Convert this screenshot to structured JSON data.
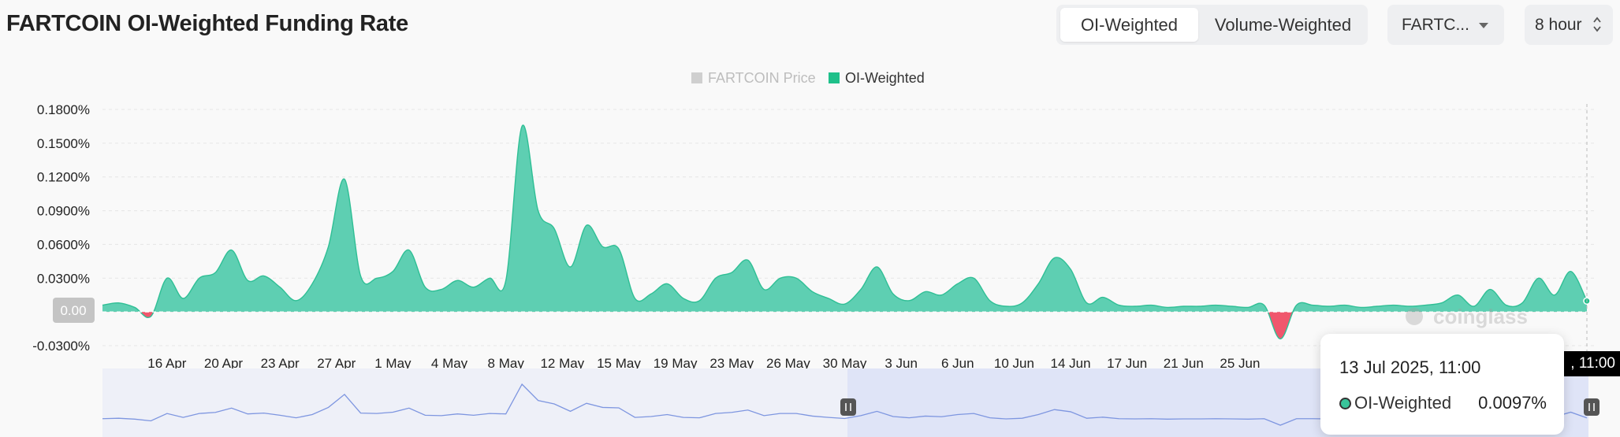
{
  "header": {
    "title": "FARTCOIN OI-Weighted Funding Rate",
    "tabs": [
      {
        "label": "OI-Weighted",
        "active": true
      },
      {
        "label": "Volume-Weighted",
        "active": false
      }
    ],
    "symbol_select": {
      "value": "FARTC..."
    },
    "interval_select": {
      "value": "8 hour"
    }
  },
  "legend": [
    {
      "label": "FARTCOIN Price",
      "color": "#c8c8c8",
      "enabled": false
    },
    {
      "label": "OI-Weighted",
      "color": "#1fc08a",
      "enabled": true
    }
  ],
  "tooltip": {
    "time": "13 Jul 2025, 11:00",
    "series": "OI-Weighted",
    "value": "0.0097%"
  },
  "crosshair_time_label": ", 11:00",
  "zero_badge": "0.00",
  "watermark": "coinglass",
  "colors": {
    "positive": "#5ecfb2",
    "positive_line": "#2fbf95",
    "negative": "#f0576d",
    "brush": "#6b8be0"
  },
  "chart_data": {
    "type": "area",
    "title": "FARTCOIN OI-Weighted Funding Rate",
    "ylabel": "",
    "xlabel": "",
    "ylim": [
      -0.03,
      0.18
    ],
    "y_ticks": [
      "0.1800%",
      "0.1500%",
      "0.1200%",
      "0.0900%",
      "0.0600%",
      "0.0300%",
      "-0.0300%"
    ],
    "x_ticks": [
      "16 Apr",
      "20 Apr",
      "23 Apr",
      "27 Apr",
      "1 May",
      "4 May",
      "8 May",
      "12 May",
      "15 May",
      "19 May",
      "23 May",
      "26 May",
      "30 May",
      "3 Jun",
      "6 Jun",
      "10 Jun",
      "14 Jun",
      "17 Jun",
      "21 Jun",
      "25 Jun"
    ],
    "grid": true,
    "series": [
      {
        "name": "OI-Weighted",
        "x": [
          "12 Apr",
          "13 Apr",
          "14 Apr",
          "15 Apr",
          "16 Apr",
          "17 Apr",
          "18 Apr",
          "19 Apr",
          "20 Apr",
          "21 Apr",
          "22 Apr",
          "23 Apr",
          "24 Apr",
          "25 Apr",
          "26 Apr",
          "27 Apr",
          "28 Apr",
          "29 Apr",
          "30 Apr",
          "1 May",
          "2 May",
          "3 May",
          "4 May",
          "5 May",
          "6 May",
          "7 May",
          "8 May",
          "9 May",
          "10 May",
          "11 May",
          "12 May",
          "13 May",
          "14 May",
          "15 May",
          "16 May",
          "17 May",
          "18 May",
          "19 May",
          "20 May",
          "21 May",
          "22 May",
          "23 May",
          "24 May",
          "25 May",
          "26 May",
          "27 May",
          "28 May",
          "29 May",
          "30 May",
          "31 May",
          "1 Jun",
          "2 Jun",
          "3 Jun",
          "4 Jun",
          "5 Jun",
          "6 Jun",
          "7 Jun",
          "8 Jun",
          "9 Jun",
          "10 Jun",
          "11 Jun",
          "12 Jun",
          "13 Jun",
          "14 Jun",
          "15 Jun",
          "16 Jun",
          "17 Jun",
          "18 Jun",
          "19 Jun",
          "20 Jun",
          "21 Jun",
          "22 Jun",
          "23 Jun",
          "24 Jun",
          "25 Jun",
          "26 Jun",
          "27 Jun",
          "28 Jun",
          "29 Jun",
          "30 Jun",
          "1 Jul",
          "2 Jul",
          "3 Jul",
          "4 Jul",
          "5 Jul",
          "6 Jul",
          "7 Jul",
          "8 Jul",
          "9 Jul",
          "10 Jul",
          "11 Jul",
          "12 Jul",
          "13 Jul"
        ],
        "values": [
          0.006,
          0.008,
          0.004,
          -0.004,
          0.03,
          0.012,
          0.03,
          0.035,
          0.055,
          0.028,
          0.032,
          0.022,
          0.01,
          0.025,
          0.058,
          0.118,
          0.032,
          0.03,
          0.036,
          0.055,
          0.022,
          0.02,
          0.028,
          0.022,
          0.03,
          0.028,
          0.165,
          0.09,
          0.074,
          0.04,
          0.077,
          0.058,
          0.056,
          0.012,
          0.016,
          0.025,
          0.012,
          0.01,
          0.03,
          0.035,
          0.046,
          0.02,
          0.03,
          0.03,
          0.018,
          0.012,
          0.007,
          0.02,
          0.04,
          0.016,
          0.01,
          0.018,
          0.015,
          0.025,
          0.03,
          0.01,
          0.005,
          0.008,
          0.025,
          0.048,
          0.038,
          0.008,
          0.013,
          0.006,
          0.005,
          0.006,
          0.004,
          0.005,
          0.005,
          0.006,
          0.005,
          0.004,
          0.006,
          -0.024,
          0.006,
          0.006,
          0.005,
          0.006,
          0.004,
          0.005,
          0.006,
          0.005,
          0.006,
          0.008,
          0.015,
          0.005,
          0.02,
          0.006,
          0.008,
          0.03,
          0.015,
          0.036,
          0.0097
        ]
      }
    ]
  }
}
